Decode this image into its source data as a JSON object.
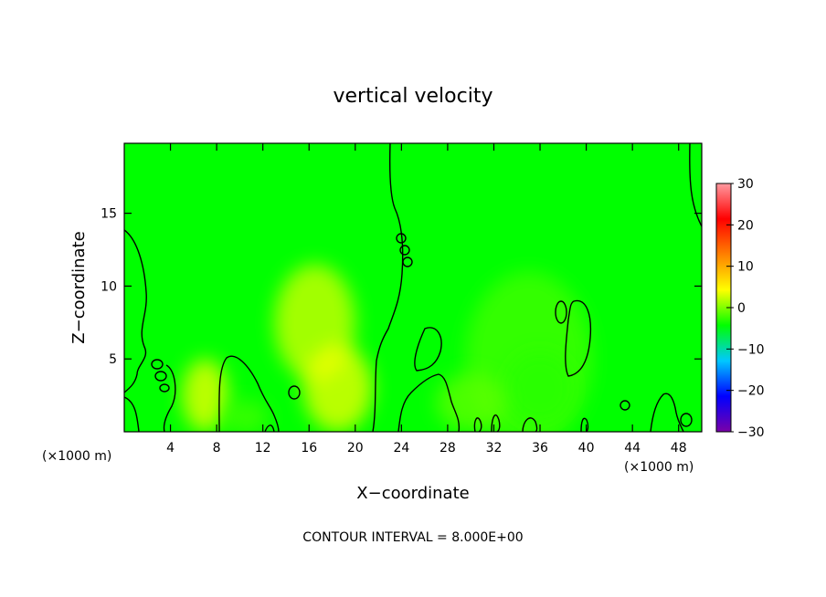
{
  "chart_data": {
    "type": "heatmap",
    "title": "vertical velocity",
    "xlabel": "X−coordinate",
    "ylabel": "Z−coordinate",
    "x_unit": "(×1000 m)",
    "y_unit": "(×1000 m)",
    "xlim": [
      0,
      50
    ],
    "ylim": [
      0,
      19.8
    ],
    "x_ticks": [
      4,
      8,
      12,
      16,
      20,
      24,
      28,
      32,
      36,
      40,
      44,
      48
    ],
    "x_tick_labels": [
      "4",
      "8",
      "12",
      "16",
      "20",
      "24",
      "28",
      "32",
      "36",
      "40",
      "44",
      "48"
    ],
    "y_ticks": [
      5,
      10,
      15
    ],
    "y_tick_labels": [
      "5",
      "10",
      "15"
    ],
    "colorbar": {
      "min": -30,
      "max": 30,
      "ticks": [
        30,
        20,
        10,
        0,
        -10,
        -20,
        -30
      ],
      "tick_labels": [
        "30",
        "20",
        "10",
        "0",
        "−10",
        "−20",
        "−30"
      ],
      "colors": [
        "#7a00a8",
        "#0000ff",
        "#00c8ff",
        "#00ff00",
        "#ffff00",
        "#ff8000",
        "#ff0000",
        "#ff9aa0"
      ]
    },
    "background_value": 0,
    "anomalies": [
      {
        "x": 16.5,
        "z": 7.5,
        "rx": 3.5,
        "rz": 4.0,
        "value": 3
      },
      {
        "x": 18.5,
        "z": 3.0,
        "rx": 3.0,
        "rz": 3.0,
        "value": 4
      },
      {
        "x": 7.0,
        "z": 2.5,
        "rx": 2.0,
        "rz": 2.5,
        "value": 4
      },
      {
        "x": 10.5,
        "z": 1.0,
        "rx": 2.0,
        "rz": 1.2,
        "value": -2
      },
      {
        "x": 35.0,
        "z": 5.0,
        "rx": 5.5,
        "rz": 6.0,
        "value": -2
      },
      {
        "x": 36.0,
        "z": 3.0,
        "rx": 3.0,
        "rz": 2.5,
        "value": -3
      },
      {
        "x": 30.0,
        "z": 2.0,
        "rx": 3.0,
        "rz": 2.0,
        "value": -1
      }
    ],
    "contour_interval_label": "CONTOUR INTERVAL = 8.000E+00",
    "grid": false
  }
}
